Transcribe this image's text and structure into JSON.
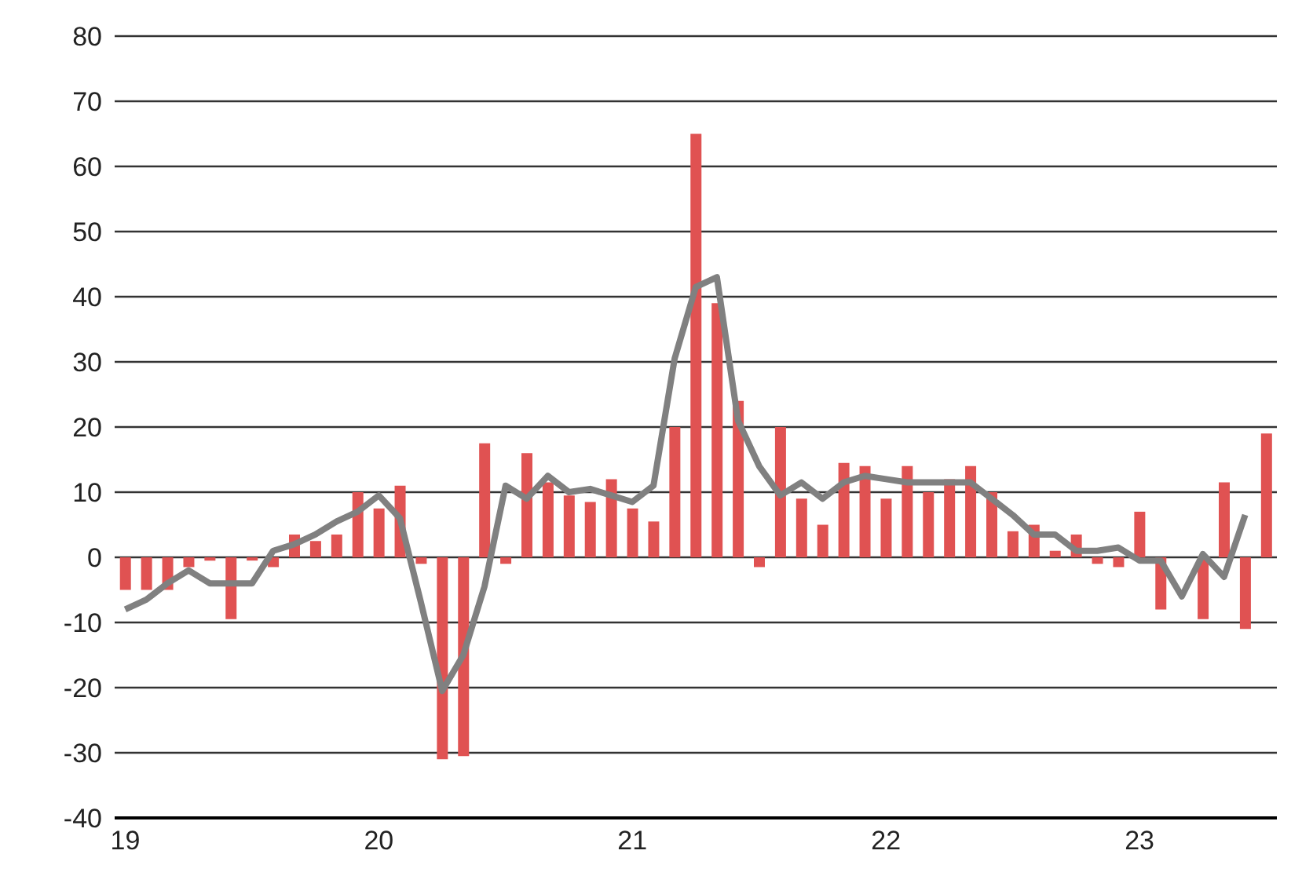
{
  "chart_data": {
    "type": "bar",
    "categories": [
      "19",
      null,
      null,
      null,
      null,
      null,
      null,
      null,
      null,
      null,
      null,
      null,
      "20",
      null,
      null,
      null,
      null,
      null,
      null,
      null,
      null,
      null,
      null,
      null,
      "21",
      null,
      null,
      null,
      null,
      null,
      null,
      null,
      null,
      null,
      null,
      null,
      "22",
      null,
      null,
      null,
      null,
      null,
      null,
      null,
      null,
      null,
      null,
      null,
      "23",
      null,
      null,
      null,
      null,
      null,
      null
    ],
    "series": [
      {
        "color": "#e05252",
        "values": [
          -5,
          -5,
          -5,
          -1.5,
          -0.5,
          -9.5,
          -0.5,
          -1.5,
          3.5,
          2.5,
          3.5,
          10,
          7.5,
          11,
          -1,
          -31,
          -30.5,
          17.5,
          -1,
          16,
          11.5,
          9.5,
          8.5,
          12,
          7.5,
          5.5,
          20,
          65,
          39,
          24,
          -1.5,
          20,
          9,
          5,
          14.5,
          14,
          9,
          14,
          10,
          12,
          14,
          10,
          4,
          5,
          1,
          3.5,
          -1,
          -1.5,
          7,
          -8,
          0,
          -9.5,
          11.5,
          -11,
          19
        ]
      },
      {
        "type": "line",
        "color": "#808080",
        "values": [
          -8,
          -6.5,
          -4,
          -2,
          -4,
          -4,
          -4,
          1,
          2,
          3.5,
          5.5,
          7,
          9.5,
          6,
          -7,
          -20.5,
          -15,
          -4.5,
          11,
          9,
          12.5,
          10,
          10.5,
          9.5,
          8.5,
          11,
          30.5,
          41.5,
          43,
          21,
          14,
          9.5,
          11.5,
          9,
          11.5,
          12.5,
          12,
          11.5,
          11.5,
          11.5,
          11.5,
          9,
          6.5,
          3.5,
          3.5,
          1,
          1,
          1.5,
          -0.5,
          -0.5,
          -6,
          0.5,
          -3,
          6.5,
          null
        ]
      }
    ],
    "ylim": [
      -40,
      80
    ],
    "yticks": [
      -40,
      -30,
      -20,
      -10,
      0,
      10,
      20,
      30,
      40,
      50,
      60,
      70,
      80
    ],
    "grid": "y",
    "marker": "none",
    "line_style": "solid"
  }
}
